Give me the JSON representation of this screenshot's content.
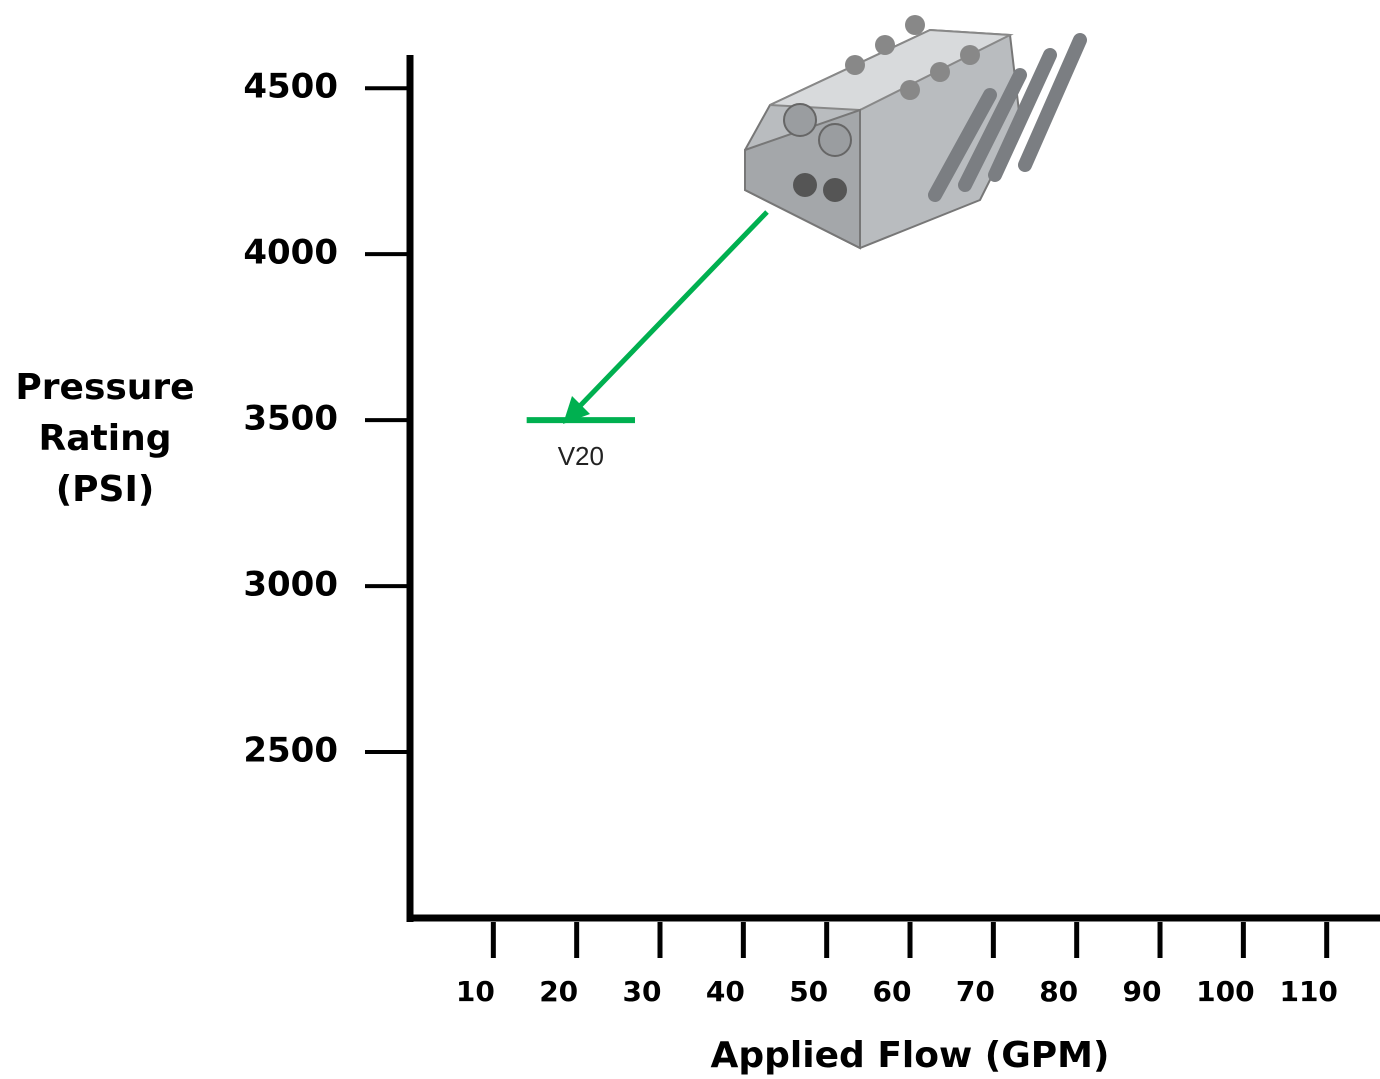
{
  "chart_data": {
    "type": "line",
    "xlabel": "Applied Flow (GPM)",
    "ylabel": "Pressure Rating (PSI)",
    "xlim": [
      0,
      116
    ],
    "xticks": [
      10,
      20,
      30,
      40,
      50,
      60,
      70,
      80,
      90,
      100,
      110
    ],
    "ylim": [
      2000,
      4600
    ],
    "yticks": [
      2500,
      3000,
      3500,
      4000,
      4500
    ],
    "series": [
      {
        "name": "V20",
        "color": "#00b050",
        "x": [
          14,
          27
        ],
        "values": [
          3500,
          3500
        ]
      }
    ]
  }
}
